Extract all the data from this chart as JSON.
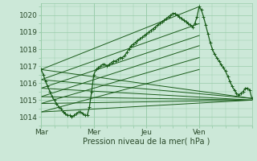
{
  "xlabel": "Pression niveau de la mer( hPa )",
  "background_color": "#cce8d8",
  "plot_bg_color": "#cce8d8",
  "grid_color": "#99ccaa",
  "line_color": "#1a5c1a",
  "xlim": [
    0,
    96
  ],
  "ylim": [
    1013.5,
    1020.7
  ],
  "yticks": [
    1014,
    1015,
    1016,
    1017,
    1018,
    1019,
    1020
  ],
  "xtick_positions": [
    0,
    24,
    48,
    72,
    96
  ],
  "xtick_labels": [
    "Mar",
    "Mer",
    "Jeu",
    "Ven",
    ""
  ],
  "straight_lines": [
    [
      [
        0,
        1016.8
      ],
      [
        96,
        1015.1
      ]
    ],
    [
      [
        0,
        1016.2
      ],
      [
        96,
        1015.1
      ]
    ],
    [
      [
        0,
        1015.7
      ],
      [
        96,
        1015.0
      ]
    ],
    [
      [
        0,
        1015.2
      ],
      [
        96,
        1015.0
      ]
    ],
    [
      [
        0,
        1014.8
      ],
      [
        96,
        1015.0
      ]
    ],
    [
      [
        0,
        1014.3
      ],
      [
        96,
        1015.0
      ]
    ],
    [
      [
        0,
        1016.8
      ],
      [
        72,
        1020.5
      ]
    ],
    [
      [
        0,
        1016.2
      ],
      [
        72,
        1019.5
      ]
    ],
    [
      [
        0,
        1015.7
      ],
      [
        72,
        1018.8
      ]
    ],
    [
      [
        0,
        1015.2
      ],
      [
        72,
        1018.2
      ]
    ],
    [
      [
        0,
        1014.8
      ],
      [
        72,
        1017.5
      ]
    ],
    [
      [
        0,
        1014.3
      ],
      [
        72,
        1016.8
      ]
    ]
  ],
  "main_line": [
    [
      0,
      1016.8
    ],
    [
      1,
      1016.5
    ],
    [
      2,
      1016.1
    ],
    [
      3,
      1015.8
    ],
    [
      4,
      1015.5
    ],
    [
      5,
      1015.2
    ],
    [
      6,
      1015.0
    ],
    [
      7,
      1014.8
    ],
    [
      8,
      1014.6
    ],
    [
      9,
      1014.5
    ],
    [
      10,
      1014.3
    ],
    [
      11,
      1014.2
    ],
    [
      12,
      1014.1
    ],
    [
      13,
      1014.1
    ],
    [
      14,
      1014.0
    ],
    [
      15,
      1014.1
    ],
    [
      16,
      1014.2
    ],
    [
      17,
      1014.3
    ],
    [
      18,
      1014.3
    ],
    [
      19,
      1014.2
    ],
    [
      20,
      1014.1
    ],
    [
      21,
      1014.1
    ],
    [
      22,
      1014.6
    ],
    [
      23,
      1015.5
    ],
    [
      24,
      1016.5
    ],
    [
      25,
      1016.8
    ],
    [
      26,
      1016.9
    ],
    [
      27,
      1017.0
    ],
    [
      28,
      1017.1
    ],
    [
      29,
      1017.1
    ],
    [
      30,
      1017.0
    ],
    [
      31,
      1017.1
    ],
    [
      32,
      1017.2
    ],
    [
      33,
      1017.3
    ],
    [
      34,
      1017.3
    ],
    [
      35,
      1017.4
    ],
    [
      36,
      1017.5
    ],
    [
      37,
      1017.5
    ],
    [
      38,
      1017.6
    ],
    [
      39,
      1017.8
    ],
    [
      40,
      1018.0
    ],
    [
      41,
      1018.2
    ],
    [
      42,
      1018.3
    ],
    [
      43,
      1018.4
    ],
    [
      44,
      1018.5
    ],
    [
      45,
      1018.6
    ],
    [
      46,
      1018.7
    ],
    [
      47,
      1018.8
    ],
    [
      48,
      1018.9
    ],
    [
      49,
      1019.0
    ],
    [
      50,
      1019.1
    ],
    [
      51,
      1019.2
    ],
    [
      52,
      1019.3
    ],
    [
      53,
      1019.4
    ],
    [
      54,
      1019.5
    ],
    [
      55,
      1019.6
    ],
    [
      56,
      1019.7
    ],
    [
      57,
      1019.8
    ],
    [
      58,
      1019.9
    ],
    [
      59,
      1020.0
    ],
    [
      60,
      1020.1
    ],
    [
      61,
      1020.1
    ],
    [
      62,
      1020.0
    ],
    [
      63,
      1019.9
    ],
    [
      64,
      1019.8
    ],
    [
      65,
      1019.7
    ],
    [
      66,
      1019.6
    ],
    [
      67,
      1019.5
    ],
    [
      68,
      1019.4
    ],
    [
      69,
      1019.3
    ],
    [
      70,
      1019.5
    ],
    [
      71,
      1019.9
    ],
    [
      72,
      1020.5
    ],
    [
      73,
      1020.3
    ],
    [
      74,
      1019.9
    ],
    [
      75,
      1019.4
    ],
    [
      76,
      1018.9
    ],
    [
      77,
      1018.4
    ],
    [
      78,
      1018.0
    ],
    [
      79,
      1017.7
    ],
    [
      80,
      1017.5
    ],
    [
      81,
      1017.3
    ],
    [
      82,
      1017.1
    ],
    [
      83,
      1016.9
    ],
    [
      84,
      1016.7
    ],
    [
      85,
      1016.4
    ],
    [
      86,
      1016.1
    ],
    [
      87,
      1015.8
    ],
    [
      88,
      1015.6
    ],
    [
      89,
      1015.4
    ],
    [
      90,
      1015.3
    ],
    [
      91,
      1015.4
    ],
    [
      92,
      1015.5
    ],
    [
      93,
      1015.7
    ],
    [
      94,
      1015.7
    ],
    [
      95,
      1015.6
    ],
    [
      96,
      1015.1
    ]
  ]
}
